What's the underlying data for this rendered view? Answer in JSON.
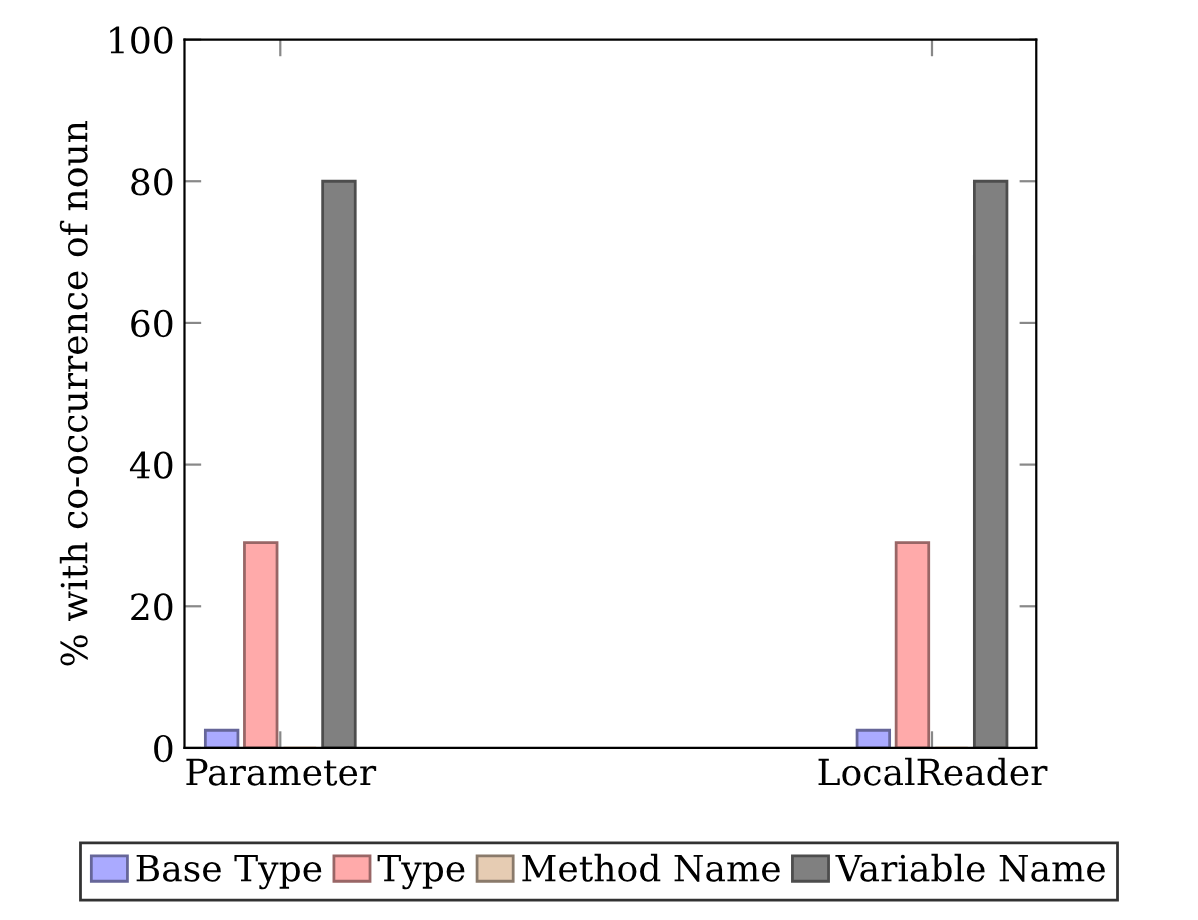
{
  "chart_data": {
    "type": "bar",
    "ylabel": "% with co-occurrence of noun",
    "categories": [
      "Parameter",
      "LocalReader"
    ],
    "series": [
      {
        "name": "Base Type",
        "color": "#aaaaff",
        "values": [
          2.5,
          2.5
        ]
      },
      {
        "name": "Type",
        "color": "#ffaaaa",
        "values": [
          29,
          29
        ]
      },
      {
        "name": "Method Name",
        "color": "#e6ccb3",
        "values": [
          0,
          0
        ]
      },
      {
        "name": "Variable Name",
        "color": "#808080",
        "values": [
          80,
          80
        ]
      }
    ],
    "ylim": [
      0,
      100
    ],
    "yticks": [
      0,
      20,
      40,
      60,
      80,
      100
    ],
    "grid": false,
    "legend": "bottom"
  }
}
